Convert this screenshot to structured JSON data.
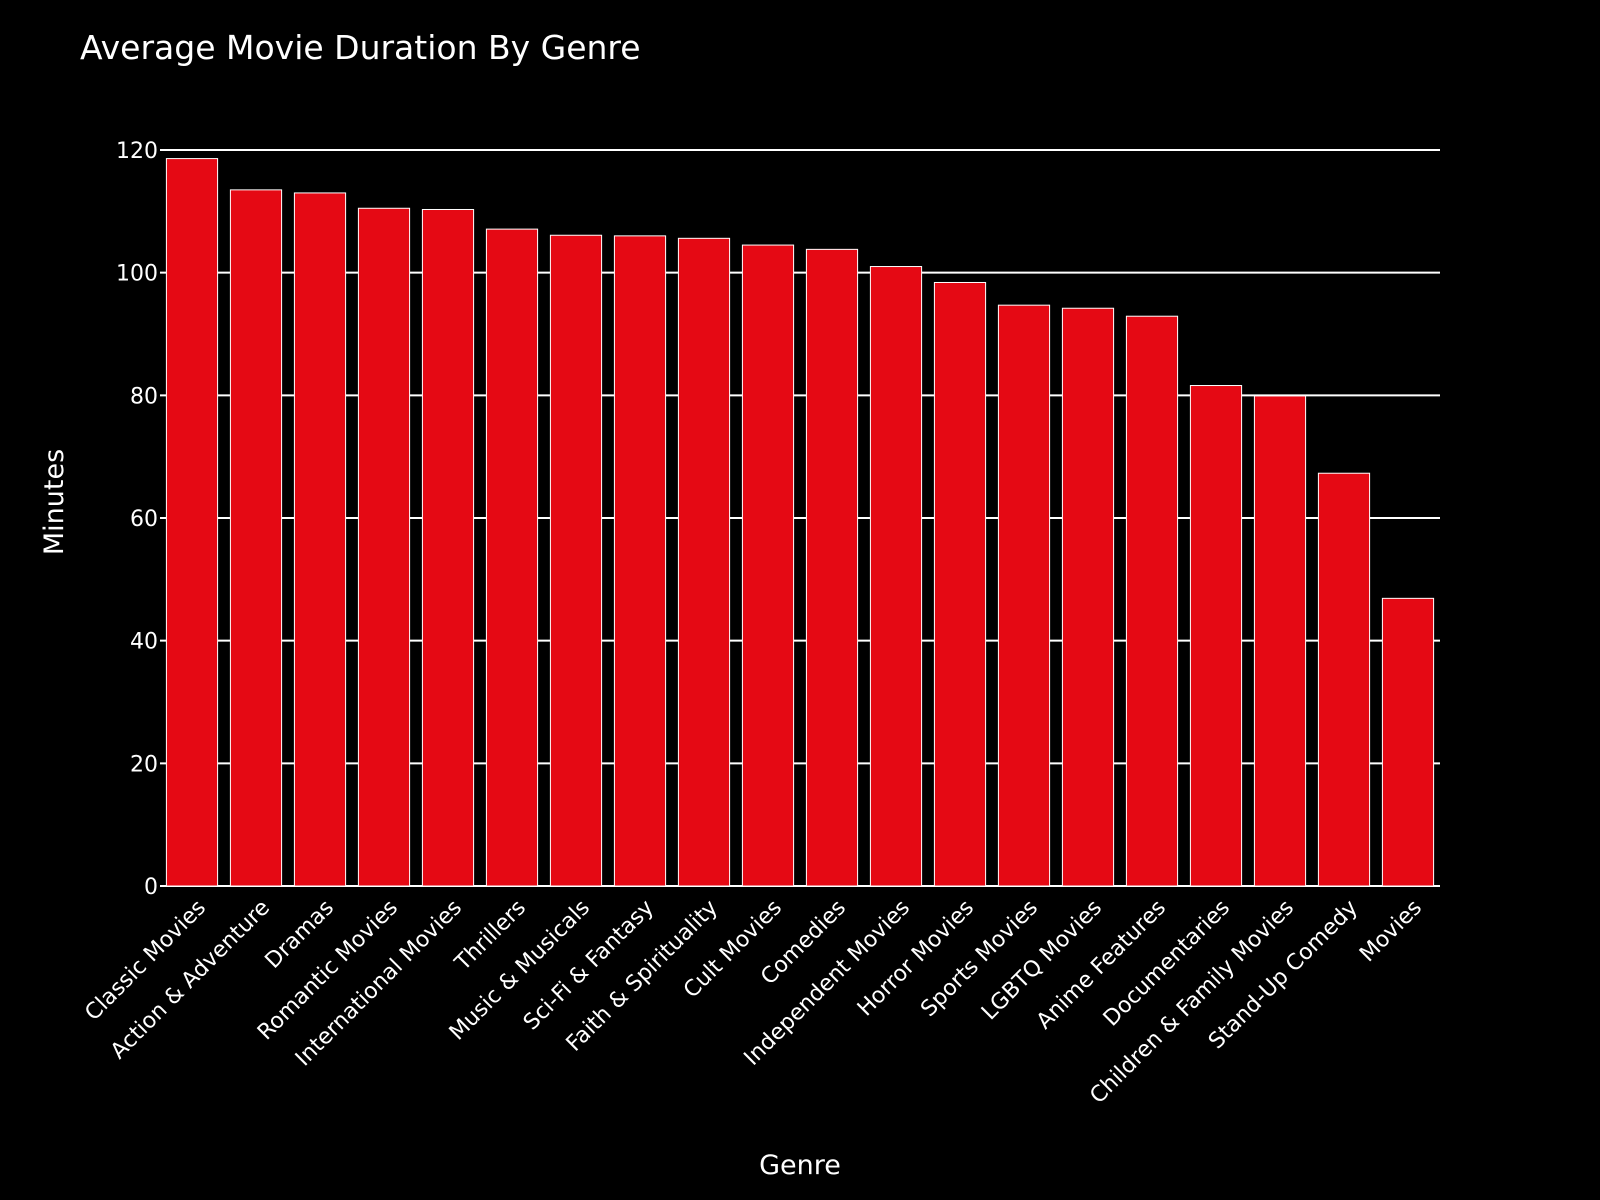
{
  "chart_data": {
    "type": "bar",
    "title": "Average Movie Duration By Genre",
    "xlabel": "Genre",
    "ylabel": "Minutes",
    "categories": [
      "Classic Movies",
      "Action & Adventure",
      "Dramas",
      "Romantic Movies",
      "International Movies",
      "Thrillers",
      "Music & Musicals",
      "Sci-Fi & Fantasy",
      "Faith & Spirituality",
      "Cult Movies",
      "Comedies",
      "Independent Movies",
      "Horror Movies",
      "Sports Movies",
      "LGBTQ Movies",
      "Anime Features",
      "Documentaries",
      "Children & Family Movies",
      "Stand-Up Comedy",
      "Movies"
    ],
    "values": [
      118.6,
      113.5,
      113.0,
      110.5,
      110.3,
      107.1,
      106.1,
      106.0,
      105.6,
      104.5,
      103.8,
      101.0,
      98.4,
      94.7,
      94.2,
      92.9,
      81.6,
      79.9,
      67.3,
      46.9
    ],
    "ylim": [
      0,
      120
    ],
    "yticks": [
      0,
      20,
      40,
      60,
      80,
      100,
      120
    ],
    "grid": true,
    "legend": "none",
    "colors": {
      "background": "#000000",
      "bar": "#e50914",
      "bar_outline": "#ffffff",
      "text": "#ffffff",
      "grid": "#ffffff"
    }
  }
}
